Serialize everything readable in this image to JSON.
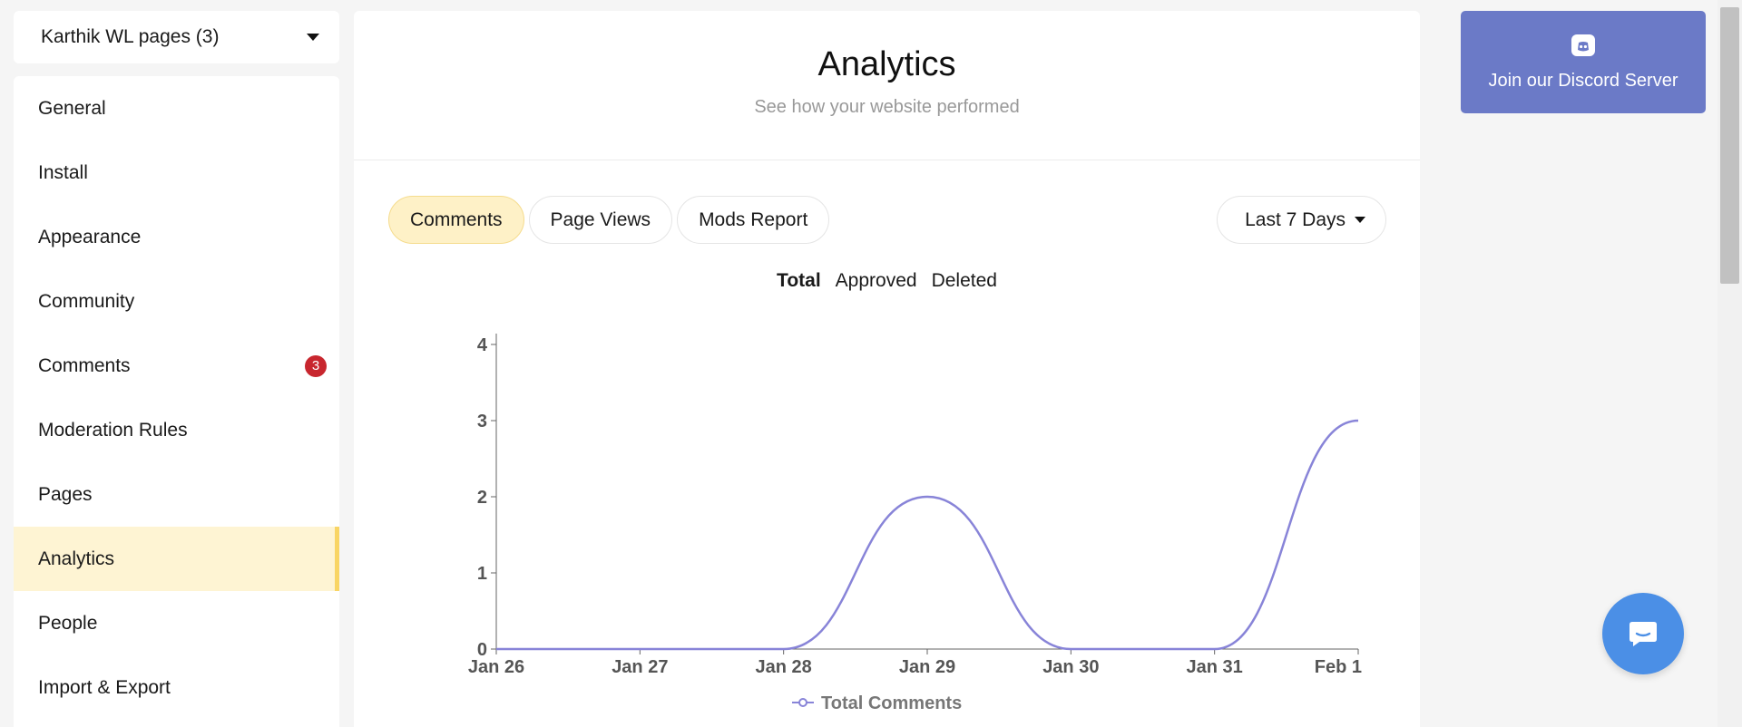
{
  "site_select": {
    "label": "Karthik WL pages (3)"
  },
  "sidebar": {
    "items": [
      {
        "label": "General"
      },
      {
        "label": "Install"
      },
      {
        "label": "Appearance"
      },
      {
        "label": "Community"
      },
      {
        "label": "Comments",
        "badge": "3"
      },
      {
        "label": "Moderation Rules"
      },
      {
        "label": "Pages"
      },
      {
        "label": "Analytics",
        "active": true
      },
      {
        "label": "People"
      },
      {
        "label": "Import & Export"
      }
    ]
  },
  "header": {
    "title": "Analytics",
    "subtitle": "See how your website performed"
  },
  "tabs": [
    {
      "label": "Comments",
      "active": true
    },
    {
      "label": "Page Views"
    },
    {
      "label": "Mods Report"
    }
  ],
  "range_select": {
    "label": "Last 7 Days"
  },
  "series_toggle": {
    "total": "Total",
    "approved": "Approved",
    "deleted": "Deleted"
  },
  "chart_data": {
    "type": "line",
    "x": [
      "Jan 26",
      "Jan 27",
      "Jan 28",
      "Jan 29",
      "Jan 30",
      "Jan 31",
      "Feb 1"
    ],
    "series": [
      {
        "name": "Total Comments",
        "values": [
          0,
          0,
          0,
          2,
          0,
          0,
          3
        ],
        "color": "#8884d8"
      }
    ],
    "yticks": [
      0,
      1,
      2,
      3,
      4
    ],
    "ylim": [
      0,
      4
    ],
    "legend_position": "bottom"
  },
  "discord": {
    "label": "Join our Discord Server",
    "icon": "discord-icon"
  },
  "chat": {
    "icon": "chat-icon"
  },
  "colors": {
    "active_bg": "#fef4d3",
    "accent": "#f9d564",
    "discord": "#6b7ac7",
    "chat": "#4b8fe6",
    "badge": "#c8262e",
    "line": "#8884d8"
  }
}
